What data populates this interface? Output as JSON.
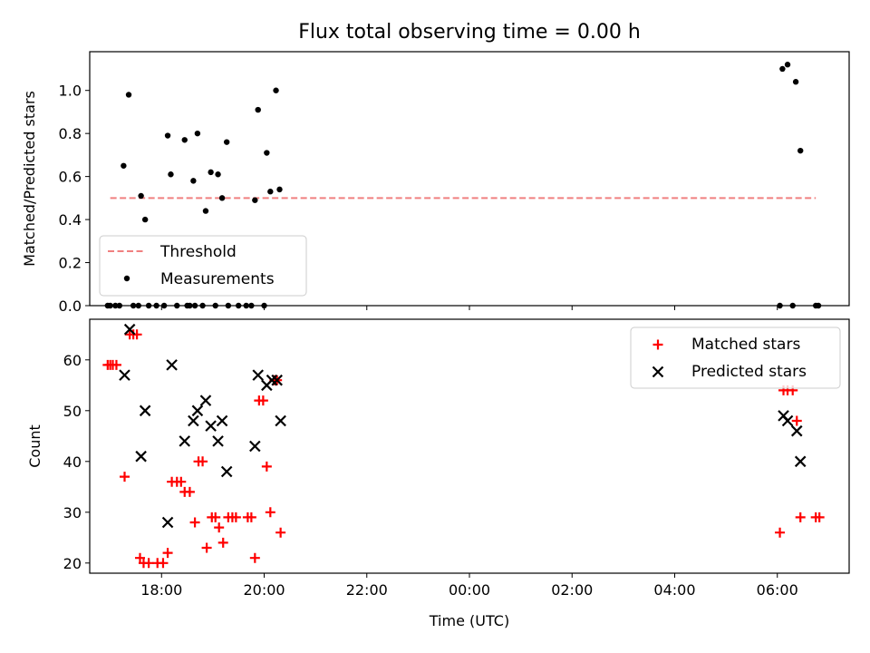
{
  "chart_data": [
    {
      "type": "scatter",
      "title": "Flux total observing time = 0.00 h",
      "xlabel": "",
      "ylabel": "Matched/Predicted stars",
      "xlim": [
        16.6,
        31.4
      ],
      "ylim": [
        0.0,
        1.18
      ],
      "yticks": [
        0.0,
        0.2,
        0.4,
        0.6,
        0.8,
        1.0
      ],
      "ytick_labels": [
        "0.0",
        "0.2",
        "0.4",
        "0.6",
        "0.8",
        "1.0"
      ],
      "threshold": {
        "name": "Threshold",
        "y": 0.5,
        "x_start": 17.0,
        "x_end": 30.75,
        "color": "#f08080",
        "style": "dashed"
      },
      "legend": {
        "position": "lower-left",
        "entries": [
          "Threshold",
          "Measurements"
        ]
      },
      "series": [
        {
          "name": "Measurements",
          "color": "#000000",
          "marker": "dot",
          "points": [
            [
              17.26,
              0.65
            ],
            [
              17.36,
              0.98
            ],
            [
              17.6,
              0.51
            ],
            [
              17.68,
              0.4
            ],
            [
              18.12,
              0.79
            ],
            [
              18.18,
              0.61
            ],
            [
              18.45,
              0.77
            ],
            [
              18.62,
              0.58
            ],
            [
              18.7,
              0.8
            ],
            [
              18.86,
              0.44
            ],
            [
              18.96,
              0.62
            ],
            [
              19.1,
              0.61
            ],
            [
              19.18,
              0.5
            ],
            [
              19.27,
              0.76
            ],
            [
              19.82,
              0.49
            ],
            [
              19.88,
              0.91
            ],
            [
              20.05,
              0.71
            ],
            [
              20.12,
              0.53
            ],
            [
              20.23,
              1.0
            ],
            [
              20.3,
              0.54
            ],
            [
              30.1,
              1.1
            ],
            [
              30.2,
              1.12
            ],
            [
              30.36,
              1.04
            ],
            [
              30.45,
              0.72
            ],
            [
              16.95,
              0.0
            ],
            [
              17.0,
              0.0
            ],
            [
              17.1,
              0.0
            ],
            [
              17.18,
              0.0
            ],
            [
              17.45,
              0.0
            ],
            [
              17.55,
              0.0
            ],
            [
              17.75,
              0.0
            ],
            [
              17.9,
              0.0
            ],
            [
              18.05,
              0.0
            ],
            [
              18.3,
              0.0
            ],
            [
              18.5,
              0.0
            ],
            [
              18.55,
              0.0
            ],
            [
              18.65,
              0.0
            ],
            [
              18.8,
              0.0
            ],
            [
              19.05,
              0.0
            ],
            [
              19.3,
              0.0
            ],
            [
              19.5,
              0.0
            ],
            [
              19.65,
              0.0
            ],
            [
              19.75,
              0.0
            ],
            [
              20.0,
              0.0
            ],
            [
              30.05,
              0.0
            ],
            [
              30.3,
              0.0
            ],
            [
              30.75,
              0.0
            ],
            [
              30.8,
              0.0
            ]
          ]
        }
      ]
    },
    {
      "type": "scatter",
      "title": "",
      "xlabel": "Time (UTC)",
      "ylabel": "Count",
      "xlim": [
        16.6,
        31.4
      ],
      "ylim": [
        18,
        68
      ],
      "yticks": [
        20,
        30,
        40,
        50,
        60
      ],
      "ytick_labels": [
        "20",
        "30",
        "40",
        "50",
        "60"
      ],
      "xticks": [
        18,
        20,
        22,
        24,
        26,
        28,
        30
      ],
      "xtick_labels": [
        "18:00",
        "20:00",
        "22:00",
        "00:00",
        "02:00",
        "04:00",
        "06:00"
      ],
      "legend": {
        "position": "top-right",
        "entries": [
          "Matched stars",
          "Predicted stars"
        ]
      },
      "series": [
        {
          "name": "Matched stars",
          "color": "#ff0000",
          "marker": "plus",
          "points": [
            [
              16.95,
              59
            ],
            [
              17.0,
              59
            ],
            [
              17.05,
              59
            ],
            [
              17.12,
              59
            ],
            [
              17.28,
              37
            ],
            [
              17.38,
              65
            ],
            [
              17.45,
              65
            ],
            [
              17.52,
              65
            ],
            [
              17.58,
              21
            ],
            [
              17.65,
              20
            ],
            [
              17.75,
              20
            ],
            [
              17.92,
              20
            ],
            [
              18.03,
              20
            ],
            [
              18.12,
              22
            ],
            [
              18.2,
              36
            ],
            [
              18.3,
              36
            ],
            [
              18.38,
              36
            ],
            [
              18.45,
              34
            ],
            [
              18.55,
              34
            ],
            [
              18.65,
              28
            ],
            [
              18.72,
              40
            ],
            [
              18.8,
              40
            ],
            [
              18.88,
              23
            ],
            [
              18.98,
              29
            ],
            [
              19.05,
              29
            ],
            [
              19.12,
              27
            ],
            [
              19.2,
              24
            ],
            [
              19.3,
              29
            ],
            [
              19.38,
              29
            ],
            [
              19.45,
              29
            ],
            [
              19.68,
              29
            ],
            [
              19.75,
              29
            ],
            [
              19.82,
              21
            ],
            [
              19.9,
              52
            ],
            [
              19.98,
              52
            ],
            [
              20.05,
              39
            ],
            [
              20.12,
              30
            ],
            [
              20.2,
              56
            ],
            [
              20.25,
              56
            ],
            [
              20.32,
              26
            ],
            [
              30.05,
              26
            ],
            [
              30.12,
              54
            ],
            [
              30.2,
              54
            ],
            [
              30.3,
              54
            ],
            [
              30.38,
              48
            ],
            [
              30.45,
              29
            ],
            [
              30.75,
              29
            ],
            [
              30.82,
              29
            ]
          ]
        },
        {
          "name": "Predicted stars",
          "color": "#000000",
          "marker": "x",
          "points": [
            [
              17.28,
              57
            ],
            [
              17.38,
              66
            ],
            [
              17.6,
              41
            ],
            [
              17.68,
              50
            ],
            [
              18.12,
              28
            ],
            [
              18.2,
              59
            ],
            [
              18.45,
              44
            ],
            [
              18.62,
              48
            ],
            [
              18.7,
              50
            ],
            [
              18.86,
              52
            ],
            [
              18.96,
              47
            ],
            [
              19.1,
              44
            ],
            [
              19.18,
              48
            ],
            [
              19.27,
              38
            ],
            [
              19.82,
              43
            ],
            [
              19.88,
              57
            ],
            [
              20.05,
              55
            ],
            [
              20.15,
              56
            ],
            [
              20.25,
              56
            ],
            [
              20.32,
              48
            ],
            [
              30.12,
              49
            ],
            [
              30.2,
              48
            ],
            [
              30.38,
              46
            ],
            [
              30.45,
              40
            ]
          ]
        }
      ]
    }
  ]
}
